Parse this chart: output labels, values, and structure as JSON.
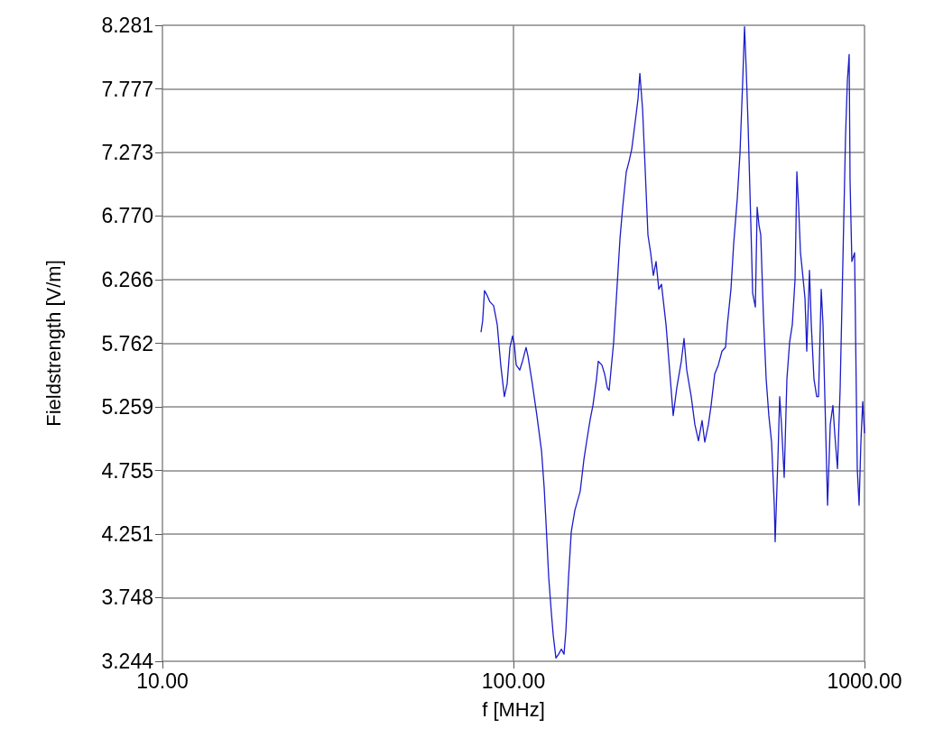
{
  "chart_data": {
    "type": "line",
    "xlabel": "f [MHz]",
    "ylabel": "Fieldstrength [V/m]",
    "log": "x",
    "grid": true,
    "marker": "none",
    "line_style": "solid",
    "xlim": [
      10,
      1000
    ],
    "xticks": [
      {
        "value": 10,
        "label": "10.00"
      },
      {
        "value": 100,
        "label": "100.00"
      },
      {
        "value": 1000,
        "label": "1000.00"
      }
    ],
    "ylim": [
      3.244,
      8.281
    ],
    "yticks": [
      3.244,
      3.748,
      4.251,
      4.755,
      5.259,
      5.762,
      6.266,
      {
        "value": 6.77,
        "label": "6.770"
      },
      7.273,
      7.777,
      8.281
    ],
    "series": [
      {
        "color": "#1c1cc8",
        "x": [
          80.8,
          81.7,
          82.7,
          84.2,
          85.7,
          87.8,
          89.9,
          92.0,
          94.2,
          95.9,
          97.7,
          99.4,
          100.6,
          101.8,
          104.2,
          106.1,
          108.6,
          110.0,
          113.2,
          116.6,
          120.2,
          122.3,
          123.8,
          126.0,
          128.2,
          129.8,
          132.1,
          134.5,
          136.9,
          139.3,
          141.0,
          143.5,
          146.1,
          149.6,
          154.9,
          158.7,
          161.5,
          165.4,
          168.4,
          172.4,
          174.4,
          178.6,
          181.8,
          185.1,
          187.3,
          189.6,
          192.9,
          196.4,
          201.1,
          204.7,
          209.6,
          213.3,
          217.2,
          222.3,
          226.4,
          229.1,
          233.2,
          237.4,
          241.6,
          245.9,
          250.3,
          254.8,
          259.4,
          264.0,
          272.0,
          278.5,
          285.1,
          291.9,
          300.7,
          306.1,
          311.6,
          320.9,
          328.6,
          336.5,
          344.6,
          350.7,
          359.2,
          365.6,
          374.4,
          383.3,
          392.6,
          401.9,
          406.7,
          416.4,
          423.9,
          434.1,
          441.9,
          449.8,
          455.2,
          460.6,
          466.1,
          474.5,
          480.1,
          488.7,
          494.5,
          500.4,
          506.3,
          515.3,
          524.6,
          533.9,
          543.5,
          553.3,
          556.5,
          566.5,
          573.3,
          580.1,
          590.5,
          601.1,
          611.8,
          622.8,
          634.1,
          641.6,
          649.3,
          657.0,
          664.9,
          676.7,
          684.7,
          697.0,
          705.3,
          717.8,
          730.8,
          739.5,
          752.8,
          761.7,
          775.6,
          784.8,
          798.8,
          812.8,
          822.5,
          837.5,
          852.4,
          867.7,
          883.1,
          893.7,
          904.2,
          909.6,
          920.4,
          936.9,
          953.6,
          965.1,
          976.6,
          988.3,
          1000
        ],
        "values": [
          5.85,
          5.94,
          6.18,
          6.14,
          6.09,
          6.06,
          5.91,
          5.59,
          5.34,
          5.44,
          5.73,
          5.82,
          5.75,
          5.59,
          5.55,
          5.62,
          5.73,
          5.66,
          5.44,
          5.19,
          4.91,
          4.62,
          4.34,
          3.91,
          3.63,
          3.45,
          3.27,
          3.3,
          3.34,
          3.3,
          3.48,
          3.91,
          4.27,
          4.44,
          4.59,
          4.84,
          4.98,
          5.16,
          5.27,
          5.48,
          5.62,
          5.59,
          5.52,
          5.41,
          5.39,
          5.55,
          5.77,
          6.12,
          6.59,
          6.84,
          7.12,
          7.2,
          7.3,
          7.52,
          7.7,
          7.9,
          7.62,
          7.12,
          6.62,
          6.48,
          6.3,
          6.41,
          6.19,
          6.23,
          5.91,
          5.55,
          5.19,
          5.41,
          5.62,
          5.8,
          5.55,
          5.34,
          5.12,
          4.99,
          5.15,
          4.98,
          5.12,
          5.27,
          5.52,
          5.59,
          5.7,
          5.73,
          5.91,
          6.19,
          6.55,
          6.91,
          7.27,
          7.84,
          8.27,
          7.91,
          7.48,
          6.7,
          6.16,
          6.05,
          6.84,
          6.7,
          6.62,
          5.98,
          5.48,
          5.19,
          4.98,
          4.48,
          4.19,
          4.84,
          5.34,
          5.12,
          4.7,
          5.48,
          5.77,
          5.91,
          6.27,
          7.12,
          6.84,
          6.48,
          6.34,
          6.12,
          5.7,
          6.34,
          5.91,
          5.48,
          5.34,
          5.34,
          6.19,
          5.91,
          5.05,
          4.48,
          5.12,
          5.27,
          5.05,
          4.77,
          5.41,
          6.41,
          7.41,
          7.84,
          8.05,
          7.05,
          6.41,
          6.48,
          4.77,
          4.48,
          4.98,
          5.3,
          5.05
        ]
      }
    ]
  }
}
